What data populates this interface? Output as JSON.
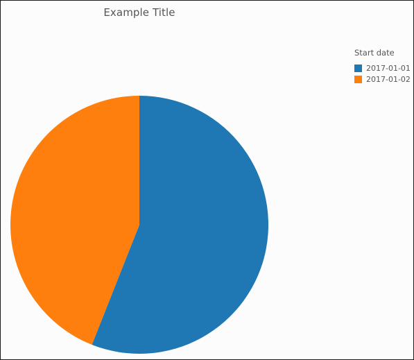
{
  "chart_data": {
    "type": "pie",
    "title": "Example Title",
    "legend_title": "Start date",
    "legend_position": "top-right",
    "categories": [
      "2017-01-01",
      "2017-01-02"
    ],
    "values": [
      56,
      44
    ],
    "colors": [
      "#1f77b4",
      "#ff7f0e"
    ]
  }
}
